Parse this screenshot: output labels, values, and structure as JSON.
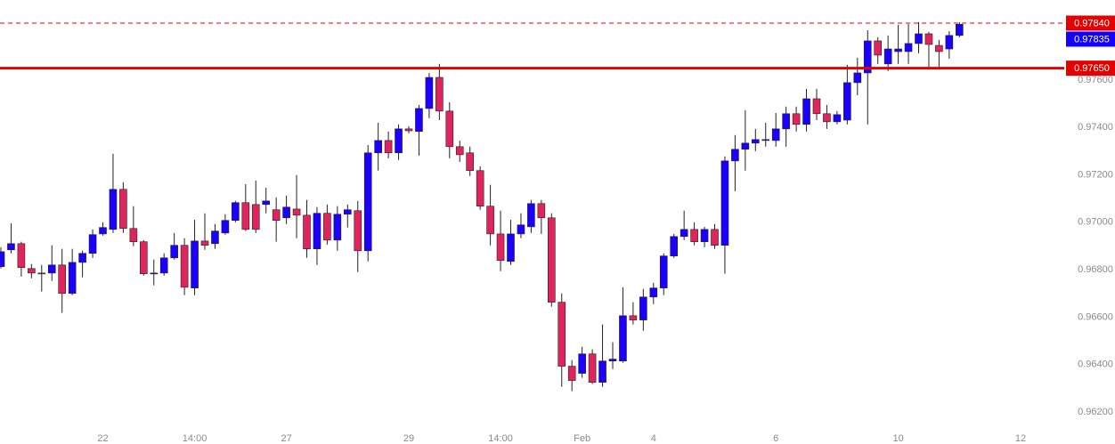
{
  "chart_data": {
    "type": "candlestick",
    "categories": [
      null,
      null,
      null,
      null,
      null,
      null,
      null,
      null,
      null,
      null,
      "22",
      null,
      null,
      null,
      null,
      null,
      null,
      null,
      null,
      "14:00",
      null,
      null,
      null,
      null,
      null,
      null,
      null,
      null,
      "27",
      null,
      null,
      null,
      null,
      null,
      null,
      null,
      null,
      null,
      null,
      null,
      "29",
      null,
      null,
      null,
      null,
      null,
      null,
      null,
      null,
      "14:00",
      null,
      null,
      null,
      null,
      null,
      null,
      null,
      "Feb",
      null,
      null,
      null,
      null,
      null,
      null,
      "4",
      null,
      null,
      null,
      null,
      null,
      null,
      null,
      null,
      null,
      null,
      null,
      "6",
      null,
      null,
      null,
      null,
      null,
      null,
      null,
      null,
      null,
      null,
      null,
      "10",
      null,
      null,
      null,
      null,
      null,
      null,
      null,
      null,
      null,
      null,
      null,
      "12"
    ],
    "open": [
      0.96813,
      0.96884,
      0.9691,
      0.96805,
      0.96786,
      0.96786,
      0.9682,
      0.967,
      0.96831,
      0.96869,
      0.96951,
      0.9697,
      0.97139,
      0.96974,
      0.96918,
      0.96783,
      0.96786,
      0.9685,
      0.96903,
      0.96723,
      0.96921,
      0.9691,
      0.96955,
      0.97008,
      0.97083,
      0.97075,
      0.97075,
      0.97053,
      0.97019,
      0.97056,
      0.9703,
      0.96888,
      0.97038,
      0.96925,
      0.97034,
      0.97049,
      0.9688,
      0.97293,
      0.97345,
      0.97293,
      0.97394,
      0.97383,
      0.9748,
      0.97611,
      0.97469,
      0.97319,
      0.97293,
      0.97218,
      0.97068,
      0.96951,
      0.96835,
      0.96951,
      0.96981,
      0.97079,
      0.97019,
      0.96663,
      0.96393,
      0.96363,
      0.96445,
      0.96325,
      0.96415,
      0.96415,
      0.96606,
      0.96588,
      0.96685,
      0.96723,
      0.96858,
      0.9694,
      0.9697,
      0.96918,
      0.9697,
      0.96903,
      0.97259,
      0.97308,
      0.97334,
      0.97345,
      0.97345,
      0.97394,
      0.97458,
      0.97413,
      0.97521,
      0.97458,
      0.97424,
      0.97431,
      0.97589,
      0.9763,
      0.97765,
      0.97668,
      0.9772,
      0.9772,
      0.97754,
      0.97795,
      0.97746,
      0.97731,
      0.97788,
      null,
      null,
      null,
      null,
      null,
      null
    ],
    "high": [
      0.96895,
      0.96996,
      0.96918,
      0.96824,
      0.9682,
      0.96903,
      0.96888,
      0.96888,
      0.9688,
      0.9697,
      0.97,
      0.97289,
      0.97169,
      0.97068,
      0.96925,
      0.96843,
      0.96869,
      0.96955,
      0.96933,
      0.97011,
      0.97038,
      0.96993,
      0.97034,
      0.9709,
      0.97161,
      0.97176,
      0.97146,
      0.97105,
      0.97113,
      0.97199,
      0.97094,
      0.97064,
      0.97075,
      0.97068,
      0.97075,
      0.9709,
      0.97326,
      0.9742,
      0.97383,
      0.97413,
      0.97405,
      0.97495,
      0.9763,
      0.97668,
      0.97506,
      0.97345,
      0.97319,
      0.97236,
      0.97158,
      0.97049,
      0.97011,
      0.97038,
      0.97094,
      0.97094,
      0.97038,
      0.967,
      0.96419,
      0.96475,
      0.96464,
      0.96569,
      0.96494,
      0.96726,
      0.96663,
      0.96719,
      0.96745,
      0.96869,
      0.96951,
      0.97049,
      0.97,
      0.96981,
      0.96993,
      0.97278,
      0.97368,
      0.97473,
      0.97394,
      0.9742,
      0.97461,
      0.97488,
      0.97488,
      0.97563,
      0.97563,
      0.97495,
      0.97469,
      0.97664,
      0.97694,
      0.9781,
      0.9778,
      0.97788,
      0.97833,
      0.97836,
      0.97844,
      0.97803,
      0.97769,
      0.97806,
      0.97844,
      null,
      null,
      null,
      null,
      null,
      null
    ],
    "low": [
      0.96805,
      0.96869,
      0.96771,
      0.96764,
      0.96708,
      0.96753,
      0.96618,
      0.96693,
      0.96768,
      0.9685,
      0.96944,
      0.96955,
      0.96955,
      0.96899,
      0.96775,
      0.96734,
      0.96775,
      0.96843,
      0.96693,
      0.96693,
      0.96884,
      0.96888,
      0.96948,
      0.97,
      0.96963,
      0.96955,
      0.97038,
      0.96918,
      0.96993,
      0.96933,
      0.9685,
      0.9682,
      0.96906,
      0.9688,
      0.96978,
      0.9679,
      0.96835,
      0.97218,
      0.9727,
      0.97263,
      0.97375,
      0.97281,
      0.97439,
      0.97431,
      0.9727,
      0.97255,
      0.97195,
      0.97053,
      0.96903,
      0.96794,
      0.9682,
      0.96933,
      0.96955,
      0.96951,
      0.96644,
      0.96306,
      0.96288,
      0.96344,
      0.96318,
      0.96306,
      0.96381,
      0.96408,
      0.96569,
      0.96543,
      0.96655,
      0.96693,
      0.9685,
      0.96925,
      0.96903,
      0.96895,
      0.96888,
      0.96783,
      0.97131,
      0.97218,
      0.973,
      0.97319,
      0.97319,
      0.97319,
      0.97383,
      0.97383,
      0.97431,
      0.97394,
      0.97413,
      0.97413,
      0.97536,
      0.97413,
      0.97668,
      0.97638,
      0.97668,
      0.97668,
      0.97713,
      0.97645,
      0.97656,
      0.9769,
      0.9778,
      null,
      null,
      null,
      null,
      null,
      null
    ],
    "close": [
      0.96876,
      0.9691,
      0.96809,
      0.96786,
      0.96783,
      0.9682,
      0.967,
      0.96831,
      0.96869,
      0.96948,
      0.96978,
      0.97139,
      0.96974,
      0.96918,
      0.96783,
      0.96786,
      0.9685,
      0.96903,
      0.96726,
      0.96921,
      0.96903,
      0.96963,
      0.97008,
      0.97083,
      0.9697,
      0.9697,
      0.9709,
      0.97008,
      0.97064,
      0.9703,
      0.96888,
      0.97038,
      0.96925,
      0.97034,
      0.97053,
      0.9688,
      0.97293,
      0.97345,
      0.97293,
      0.97394,
      0.97386,
      0.9748,
      0.97611,
      0.97469,
      0.97319,
      0.97285,
      0.97218,
      0.97068,
      0.96951,
      0.96839,
      0.96951,
      0.96989,
      0.97079,
      0.97019,
      0.96663,
      0.96393,
      0.96333,
      0.96445,
      0.96325,
      0.96415,
      0.96423,
      0.96606,
      0.96588,
      0.96685,
      0.96723,
      0.96858,
      0.9694,
      0.9697,
      0.96918,
      0.9697,
      0.96903,
      0.97259,
      0.97308,
      0.97334,
      0.97349,
      0.97349,
      0.97394,
      0.97458,
      0.97413,
      0.97521,
      0.97458,
      0.97424,
      0.97454,
      0.97589,
      0.9763,
      0.97765,
      0.97705,
      0.97731,
      0.97731,
      0.97754,
      0.97795,
      0.9775,
      0.9772,
      0.97788,
      0.97835,
      null,
      null,
      null,
      null,
      null,
      null
    ],
    "up_color": "#1c00ff",
    "down_color": "#e0245e",
    "ylim": [
      0.96065,
      0.979375
    ],
    "yticks": [
      {
        "value": 0.962,
        "label": "0.96200"
      },
      {
        "value": 0.964,
        "label": "0.96400"
      },
      {
        "value": 0.966,
        "label": "0.96600"
      },
      {
        "value": 0.968,
        "label": "0.96800"
      },
      {
        "value": 0.97,
        "label": "0.97000"
      },
      {
        "value": 0.972,
        "label": "0.97200"
      },
      {
        "value": 0.974,
        "label": "0.97400"
      },
      {
        "value": 0.976,
        "label": "0.97600"
      }
    ],
    "grid": false,
    "price_lines": [
      {
        "value": 0.9784,
        "label": "0.97840",
        "color": "#e50000",
        "style": "dashed"
      },
      {
        "value": 0.97835,
        "label": "0.97835",
        "color": "#1400ff"
      },
      {
        "value": 0.9765,
        "label": "0.97650",
        "color": "#e50000",
        "style": "solid"
      }
    ]
  }
}
